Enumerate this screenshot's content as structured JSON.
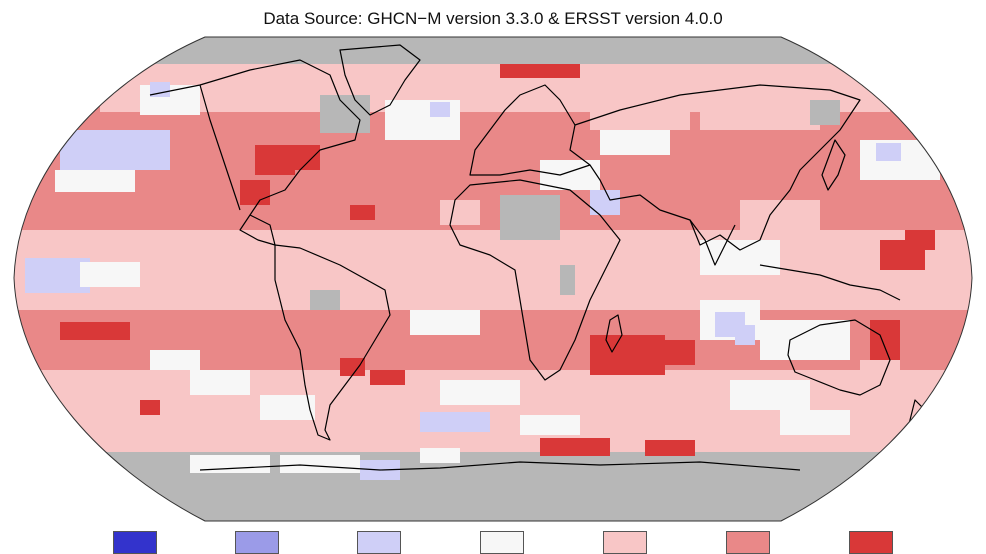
{
  "title": "Data Source: GHCN−M version 3.3.0 & ERSST version 4.0.0",
  "map": {
    "projection": "Robinson",
    "colors": {
      "no_data": "#b7b7b7",
      "much_cooler": "#3333cc",
      "cooler": "#9b9be8",
      "slightly_cooler": "#cfcff7",
      "neutral": "#f7f7f7",
      "slightly_warmer": "#f8c6c6",
      "warmer": "#e98888",
      "much_warmer": "#d93838",
      "coastline": "#000000"
    }
  },
  "legend": {
    "swatches": [
      {
        "color": "#3333cc"
      },
      {
        "color": "#9b9be8"
      },
      {
        "color": "#cfcff7"
      },
      {
        "color": "#f7f7f7"
      },
      {
        "color": "#f8c6c6"
      },
      {
        "color": "#e98888"
      },
      {
        "color": "#d93838"
      }
    ]
  }
}
